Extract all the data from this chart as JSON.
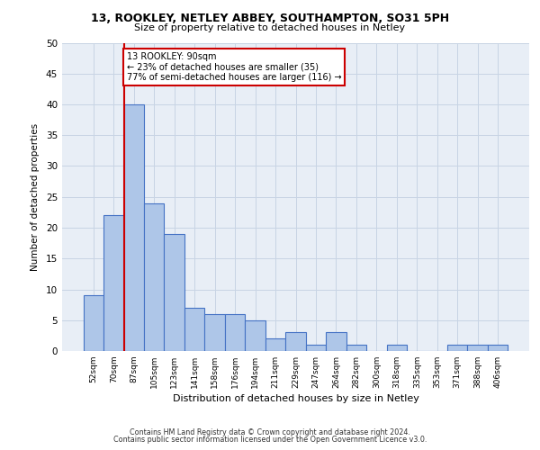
{
  "title1": "13, ROOKLEY, NETLEY ABBEY, SOUTHAMPTON, SO31 5PH",
  "title2": "Size of property relative to detached houses in Netley",
  "xlabel": "Distribution of detached houses by size in Netley",
  "ylabel": "Number of detached properties",
  "categories": [
    "52sqm",
    "70sqm",
    "87sqm",
    "105sqm",
    "123sqm",
    "141sqm",
    "158sqm",
    "176sqm",
    "194sqm",
    "211sqm",
    "229sqm",
    "247sqm",
    "264sqm",
    "282sqm",
    "300sqm",
    "318sqm",
    "335sqm",
    "353sqm",
    "371sqm",
    "388sqm",
    "406sqm"
  ],
  "values": [
    9,
    22,
    40,
    24,
    19,
    7,
    6,
    6,
    5,
    2,
    3,
    1,
    3,
    1,
    0,
    1,
    0,
    0,
    1,
    1,
    1
  ],
  "bar_color": "#aec6e8",
  "bar_edge_color": "#4472c4",
  "bar_edge_width": 0.8,
  "vline_index": 2,
  "vline_color": "#cc0000",
  "annotation_text": "13 ROOKLEY: 90sqm\n← 23% of detached houses are smaller (35)\n77% of semi-detached houses are larger (116) →",
  "annotation_box_color": "#ffffff",
  "annotation_box_edge": "#cc0000",
  "ylim": [
    0,
    50
  ],
  "yticks": [
    0,
    5,
    10,
    15,
    20,
    25,
    30,
    35,
    40,
    45,
    50
  ],
  "grid_color": "#c8d4e4",
  "bg_color": "#e8eef6",
  "footer1": "Contains HM Land Registry data © Crown copyright and database right 2024.",
  "footer2": "Contains public sector information licensed under the Open Government Licence v3.0."
}
